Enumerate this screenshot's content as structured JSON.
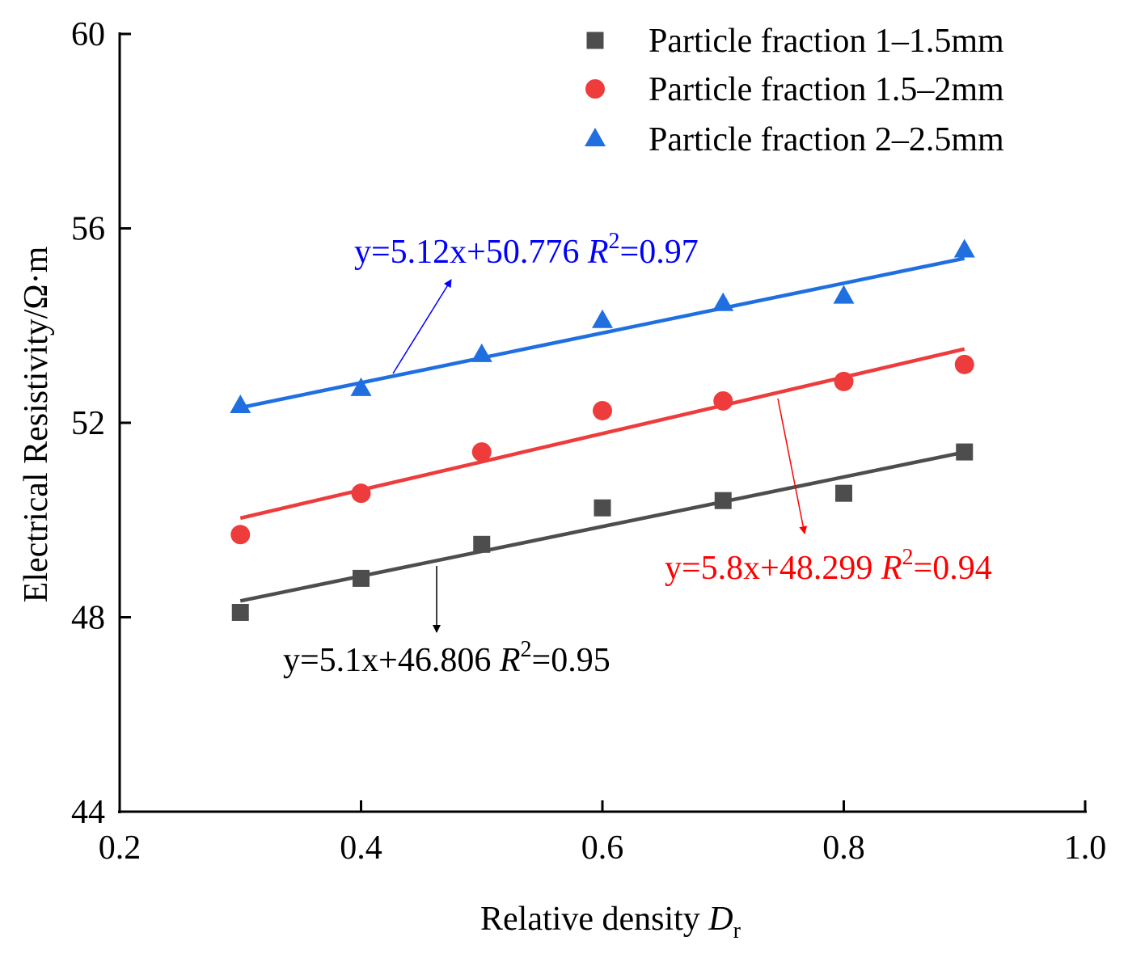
{
  "chart_data": {
    "type": "scatter",
    "xlabel": "Relative density ",
    "xlabel_italic": "D",
    "xlabel_subscript": "r",
    "ylabel": "Electrical Resistivity/Ω·m",
    "xlim": [
      0.2,
      1.0
    ],
    "ylim": [
      44,
      60
    ],
    "xticks": [
      0.2,
      0.4,
      0.6,
      0.8,
      1.0
    ],
    "xtick_labels": [
      "0.2",
      "0.4",
      "0.6",
      "0.8",
      "1.0"
    ],
    "yticks": [
      44,
      48,
      52,
      56,
      60
    ],
    "ytick_labels": [
      "44",
      "48",
      "52",
      "56",
      "60"
    ],
    "grid": false,
    "legend_position": "top-right",
    "series": [
      {
        "name": "Particle fraction 1–1.5mm",
        "marker": "square",
        "color": "#4d4d4d",
        "x": [
          0.3,
          0.4,
          0.5,
          0.6,
          0.7,
          0.8,
          0.9
        ],
        "y": [
          48.1,
          48.8,
          49.5,
          50.25,
          50.4,
          50.55,
          51.4
        ],
        "fit": {
          "slope": 5.1,
          "intercept": 46.806,
          "x_range": [
            0.3,
            0.9
          ],
          "label_prefix": "y=5.1x+46.806 ",
          "label_r": "R",
          "label_sup": "2",
          "label_suffix": "=0.95",
          "label_color": "#000000"
        }
      },
      {
        "name": "Particle fraction 1.5–2mm",
        "marker": "circle",
        "color": "#ee3b3b",
        "x": [
          0.3,
          0.4,
          0.5,
          0.6,
          0.7,
          0.8,
          0.9
        ],
        "y": [
          49.7,
          50.55,
          51.4,
          52.25,
          52.45,
          52.85,
          53.2
        ],
        "fit": {
          "slope": 5.8,
          "intercept": 48.299,
          "x_range": [
            0.3,
            0.9
          ],
          "label_prefix": "y=5.8x+48.299 ",
          "label_r": "R",
          "label_sup": "2",
          "label_suffix": "=0.94",
          "label_color": "#ff0000"
        }
      },
      {
        "name": "Particle fraction 2–2.5mm",
        "marker": "triangle",
        "color": "#1f6fe0",
        "x": [
          0.3,
          0.4,
          0.5,
          0.6,
          0.7,
          0.8,
          0.9
        ],
        "y": [
          52.35,
          52.7,
          53.4,
          54.1,
          54.45,
          54.6,
          55.55
        ],
        "fit": {
          "slope": 5.12,
          "intercept": 50.776,
          "x_range": [
            0.3,
            0.9
          ],
          "label_prefix": "y=5.12x+50.776 ",
          "label_r": "R",
          "label_sup": "2",
          "label_suffix": "=0.97",
          "label_color": "#0000ff"
        }
      }
    ]
  }
}
